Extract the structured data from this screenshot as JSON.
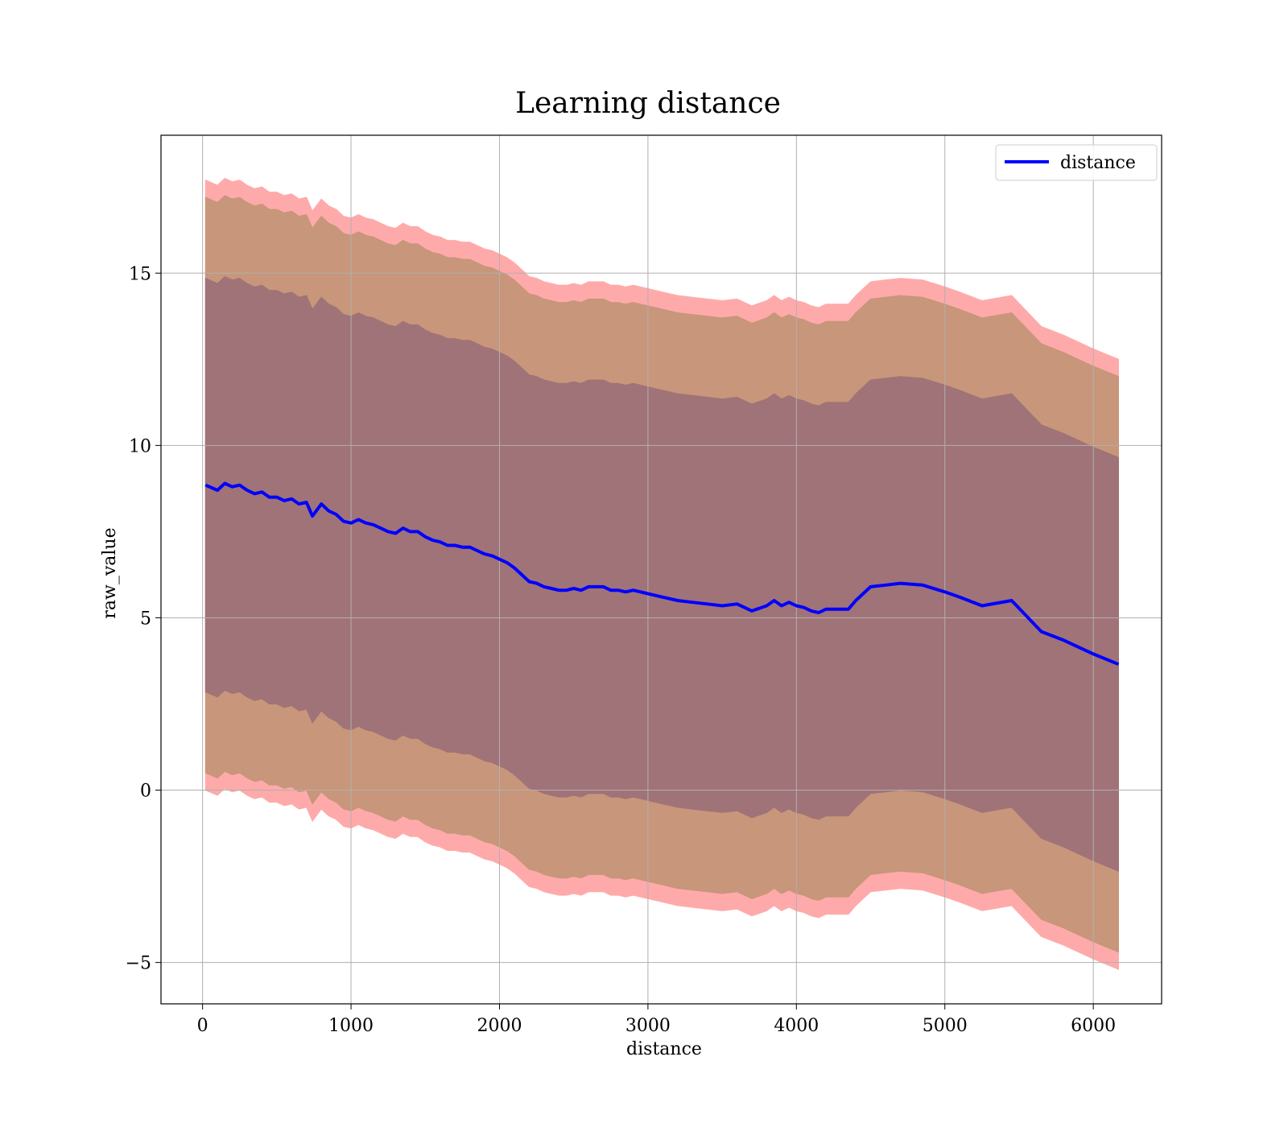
{
  "chart_data": {
    "type": "line",
    "title": "Learning distance",
    "xlabel": "distance",
    "ylabel": "raw_value",
    "xlim": [
      -280,
      6460
    ],
    "ylim": [
      -6.2,
      19.0
    ],
    "xticks": [
      0,
      1000,
      2000,
      3000,
      4000,
      5000,
      6000
    ],
    "yticks": [
      -5,
      0,
      5,
      10,
      15
    ],
    "xtick_labels": [
      "0",
      "1000",
      "2000",
      "3000",
      "4000",
      "5000",
      "6000"
    ],
    "ytick_labels": [
      "−5",
      "0",
      "5",
      "10",
      "15"
    ],
    "grid": true,
    "legend": {
      "placement": "top-right",
      "entries": [
        "distance"
      ]
    },
    "colors": {
      "line": "#0000ff",
      "outer_band": "#ffaaaa",
      "middle_band": "#c8967a",
      "inner_band": "#a07378",
      "grid": "#b0b0b0"
    },
    "x": [
      20,
      100,
      150,
      200,
      250,
      300,
      350,
      400,
      450,
      500,
      550,
      600,
      650,
      700,
      740,
      800,
      850,
      900,
      950,
      1000,
      1050,
      1100,
      1150,
      1200,
      1250,
      1300,
      1350,
      1400,
      1450,
      1500,
      1550,
      1600,
      1650,
      1700,
      1750,
      1800,
      1850,
      1900,
      1950,
      2000,
      2050,
      2100,
      2150,
      2200,
      2250,
      2300,
      2350,
      2400,
      2450,
      2500,
      2550,
      2600,
      2650,
      2700,
      2750,
      2800,
      2850,
      2900,
      2950,
      3000,
      3100,
      3200,
      3300,
      3400,
      3500,
      3600,
      3700,
      3800,
      3850,
      3900,
      3950,
      4000,
      4050,
      4100,
      4150,
      4200,
      4250,
      4300,
      4350,
      4400,
      4500,
      4600,
      4700,
      4850,
      5000,
      5100,
      5250,
      5450,
      5650,
      5800,
      6000,
      6170
    ],
    "series": [
      {
        "name": "distance",
        "values": [
          8.85,
          8.7,
          8.9,
          8.8,
          8.85,
          8.7,
          8.6,
          8.65,
          8.5,
          8.5,
          8.4,
          8.45,
          8.3,
          8.35,
          7.95,
          8.3,
          8.1,
          8.0,
          7.8,
          7.75,
          7.85,
          7.75,
          7.7,
          7.6,
          7.5,
          7.45,
          7.6,
          7.5,
          7.5,
          7.35,
          7.25,
          7.2,
          7.1,
          7.1,
          7.05,
          7.05,
          6.95,
          6.85,
          6.8,
          6.7,
          6.6,
          6.45,
          6.25,
          6.05,
          6.0,
          5.9,
          5.85,
          5.8,
          5.8,
          5.85,
          5.8,
          5.9,
          5.9,
          5.9,
          5.8,
          5.8,
          5.75,
          5.8,
          5.75,
          5.7,
          5.6,
          5.5,
          5.45,
          5.4,
          5.35,
          5.4,
          5.2,
          5.35,
          5.5,
          5.35,
          5.45,
          5.35,
          5.3,
          5.2,
          5.15,
          5.25,
          5.25,
          5.25,
          5.25,
          5.5,
          5.9,
          5.95,
          6.0,
          5.95,
          5.75,
          5.6,
          5.35,
          5.5,
          4.6,
          4.35,
          3.95,
          3.65
        ]
      }
    ],
    "bands": [
      {
        "lower_offset": -8.85,
        "upper_offset": 8.85
      },
      {
        "lower_offset": -8.35,
        "upper_offset": 8.35
      },
      {
        "lower_offset": -6.0,
        "upper_offset": 6.0
      }
    ]
  }
}
